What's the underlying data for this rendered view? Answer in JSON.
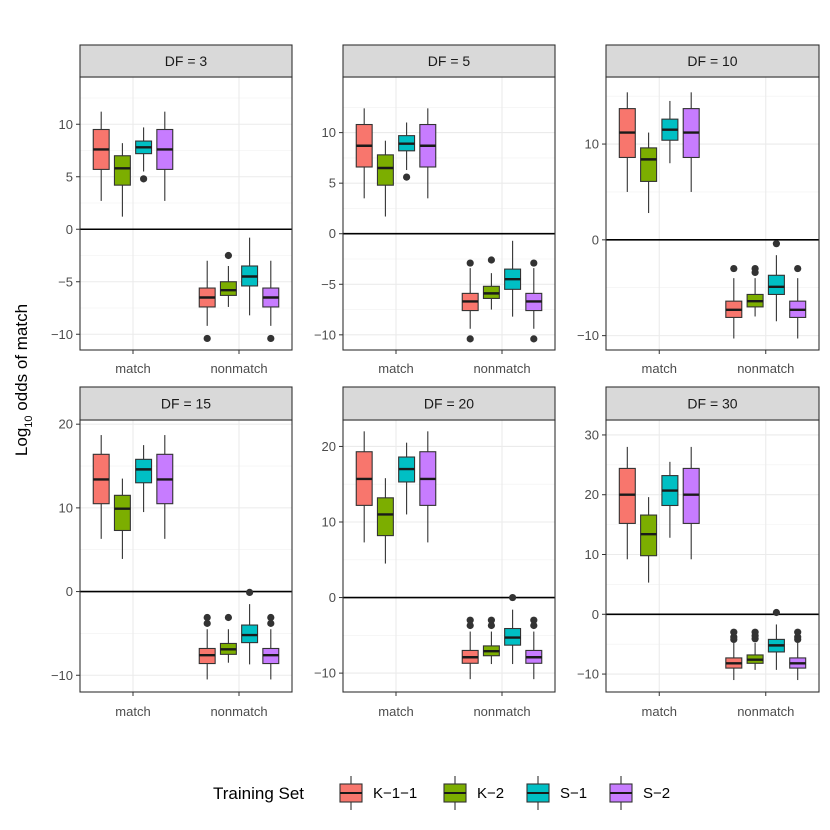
{
  "chart_data": {
    "type": "boxplot",
    "ylabel_prefix": "Log",
    "ylabel_subscript": "10",
    "ylabel_suffix": " odds of match",
    "categories": [
      "match",
      "nonmatch"
    ],
    "legend": {
      "title": "Training Set",
      "position": "bottom",
      "entries": [
        "K−1−1",
        "K−2",
        "S−1",
        "S−2"
      ]
    },
    "colors": [
      "#F8766D",
      "#7CAE00",
      "#00BFC4",
      "#C77CFF"
    ],
    "panels": [
      {
        "label": "DF = 3",
        "ylim": [
          -11.5,
          14.5
        ],
        "yticks": [
          -10,
          -5,
          0,
          5,
          10
        ],
        "tick_labels": [
          "−10",
          "−5",
          "0",
          "5",
          "10"
        ],
        "boxes": [
          [
            {
              "lo": 2.7,
              "q1": 5.7,
              "med": 7.6,
              "q3": 9.5,
              "hi": 11.2,
              "out": []
            },
            {
              "lo": 1.2,
              "q1": 4.2,
              "med": 5.8,
              "q3": 7.0,
              "hi": 8.2,
              "out": []
            },
            {
              "lo": 5.5,
              "q1": 7.2,
              "med": 7.8,
              "q3": 8.4,
              "hi": 9.7,
              "out": [
                4.8
              ]
            },
            {
              "lo": 2.7,
              "q1": 5.7,
              "med": 7.6,
              "q3": 9.5,
              "hi": 11.2,
              "out": []
            }
          ],
          [
            {
              "lo": -9.2,
              "q1": -7.4,
              "med": -6.5,
              "q3": -5.6,
              "hi": -3.0,
              "out": [
                -10.4
              ]
            },
            {
              "lo": -7.4,
              "q1": -6.3,
              "med": -5.8,
              "q3": -5.0,
              "hi": -3.5,
              "out": [
                -2.5
              ]
            },
            {
              "lo": -8.2,
              "q1": -5.4,
              "med": -4.5,
              "q3": -3.5,
              "hi": -0.8,
              "out": []
            },
            {
              "lo": -9.2,
              "q1": -7.4,
              "med": -6.5,
              "q3": -5.6,
              "hi": -3.0,
              "out": [
                -10.4
              ]
            }
          ]
        ]
      },
      {
        "label": "DF = 5",
        "ylim": [
          -11.5,
          15.5
        ],
        "yticks": [
          -10,
          -5,
          0,
          5,
          10
        ],
        "tick_labels": [
          "−10",
          "−5",
          "0",
          "5",
          "10"
        ],
        "boxes": [
          [
            {
              "lo": 3.5,
              "q1": 6.6,
              "med": 8.7,
              "q3": 10.8,
              "hi": 12.4,
              "out": []
            },
            {
              "lo": 1.7,
              "q1": 4.8,
              "med": 6.5,
              "q3": 7.8,
              "hi": 9.2,
              "out": []
            },
            {
              "lo": 6.3,
              "q1": 8.2,
              "med": 8.9,
              "q3": 9.7,
              "hi": 11.0,
              "out": [
                5.6
              ]
            },
            {
              "lo": 3.5,
              "q1": 6.6,
              "med": 8.7,
              "q3": 10.8,
              "hi": 12.4,
              "out": []
            }
          ],
          [
            {
              "lo": -9.4,
              "q1": -7.6,
              "med": -6.7,
              "q3": -5.9,
              "hi": -3.4,
              "out": [
                -10.4,
                -2.9
              ]
            },
            {
              "lo": -7.5,
              "q1": -6.4,
              "med": -5.9,
              "q3": -5.2,
              "hi": -3.9,
              "out": [
                -2.6
              ]
            },
            {
              "lo": -8.2,
              "q1": -5.5,
              "med": -4.5,
              "q3": -3.5,
              "hi": -0.7,
              "out": []
            },
            {
              "lo": -9.4,
              "q1": -7.6,
              "med": -6.7,
              "q3": -5.9,
              "hi": -3.4,
              "out": [
                -10.4,
                -2.9
              ]
            }
          ]
        ]
      },
      {
        "label": "DF = 10",
        "ylim": [
          -11.5,
          17.0
        ],
        "yticks": [
          -10,
          0,
          10
        ],
        "tick_labels": [
          "−10",
          "0",
          "10"
        ],
        "boxes": [
          [
            {
              "lo": 5.0,
              "q1": 8.6,
              "med": 11.2,
              "q3": 13.7,
              "hi": 15.4,
              "out": []
            },
            {
              "lo": 2.8,
              "q1": 6.1,
              "med": 8.4,
              "q3": 9.6,
              "hi": 11.2,
              "out": []
            },
            {
              "lo": 8.0,
              "q1": 10.4,
              "med": 11.5,
              "q3": 12.6,
              "hi": 14.5,
              "out": []
            },
            {
              "lo": 5.0,
              "q1": 8.6,
              "med": 11.2,
              "q3": 13.7,
              "hi": 15.4,
              "out": []
            }
          ],
          [
            {
              "lo": -10.3,
              "q1": -8.1,
              "med": -7.3,
              "q3": -6.4,
              "hi": -4.0,
              "out": [
                -3.0
              ]
            },
            {
              "lo": -8.0,
              "q1": -7.0,
              "med": -6.4,
              "q3": -5.7,
              "hi": -4.0,
              "out": [
                -3.0,
                -3.4
              ]
            },
            {
              "lo": -8.5,
              "q1": -5.7,
              "med": -4.9,
              "q3": -3.7,
              "hi": -1.6,
              "out": [
                -0.4
              ]
            },
            {
              "lo": -10.3,
              "q1": -8.1,
              "med": -7.3,
              "q3": -6.4,
              "hi": -4.0,
              "out": [
                -3.0
              ]
            }
          ]
        ]
      },
      {
        "label": "DF = 15",
        "ylim": [
          -12.0,
          20.5
        ],
        "yticks": [
          -10,
          0,
          10,
          20
        ],
        "tick_labels": [
          "−10",
          "0",
          "10",
          "20"
        ],
        "boxes": [
          [
            {
              "lo": 6.3,
              "q1": 10.5,
              "med": 13.4,
              "q3": 16.4,
              "hi": 18.7,
              "out": []
            },
            {
              "lo": 3.9,
              "q1": 7.3,
              "med": 9.9,
              "q3": 11.5,
              "hi": 13.5,
              "out": []
            },
            {
              "lo": 9.5,
              "q1": 13.0,
              "med": 14.6,
              "q3": 15.8,
              "hi": 17.5,
              "out": []
            },
            {
              "lo": 6.3,
              "q1": 10.5,
              "med": 13.4,
              "q3": 16.4,
              "hi": 18.7,
              "out": []
            }
          ],
          [
            {
              "lo": -10.5,
              "q1": -8.6,
              "med": -7.6,
              "q3": -6.8,
              "hi": -4.5,
              "out": [
                -3.1,
                -3.8
              ]
            },
            {
              "lo": -8.5,
              "q1": -7.5,
              "med": -6.9,
              "q3": -6.2,
              "hi": -4.5,
              "out": [
                -3.1
              ]
            },
            {
              "lo": -8.7,
              "q1": -6.1,
              "med": -5.2,
              "q3": -4.0,
              "hi": -1.5,
              "out": [
                -0.1
              ]
            },
            {
              "lo": -10.5,
              "q1": -8.6,
              "med": -7.6,
              "q3": -6.8,
              "hi": -4.5,
              "out": [
                -3.1,
                -3.8
              ]
            }
          ]
        ]
      },
      {
        "label": "DF = 20",
        "ylim": [
          -12.5,
          23.5
        ],
        "yticks": [
          -10,
          0,
          10,
          20
        ],
        "tick_labels": [
          "−10",
          "0",
          "10",
          "20"
        ],
        "boxes": [
          [
            {
              "lo": 7.3,
              "q1": 12.2,
              "med": 15.7,
              "q3": 19.3,
              "hi": 22.0,
              "out": []
            },
            {
              "lo": 4.5,
              "q1": 8.2,
              "med": 11.0,
              "q3": 13.2,
              "hi": 15.8,
              "out": []
            },
            {
              "lo": 11.0,
              "q1": 15.3,
              "med": 17.0,
              "q3": 18.6,
              "hi": 20.5,
              "out": []
            },
            {
              "lo": 7.3,
              "q1": 12.2,
              "med": 15.7,
              "q3": 19.3,
              "hi": 22.0,
              "out": []
            }
          ],
          [
            {
              "lo": -10.8,
              "q1": -8.7,
              "med": -7.9,
              "q3": -7.0,
              "hi": -4.5,
              "out": [
                -3.0,
                -3.7
              ]
            },
            {
              "lo": -8.8,
              "q1": -7.7,
              "med": -7.1,
              "q3": -6.4,
              "hi": -4.5,
              "out": [
                -3.0,
                -3.7
              ]
            },
            {
              "lo": -8.8,
              "q1": -6.3,
              "med": -5.3,
              "q3": -4.1,
              "hi": -1.6,
              "out": [
                0.0
              ]
            },
            {
              "lo": -10.8,
              "q1": -8.7,
              "med": -7.9,
              "q3": -7.0,
              "hi": -4.5,
              "out": [
                -3.0,
                -3.7
              ]
            }
          ]
        ]
      },
      {
        "label": "DF = 30",
        "ylim": [
          -13.0,
          32.5
        ],
        "yticks": [
          -10,
          0,
          10,
          20,
          30
        ],
        "tick_labels": [
          "−10",
          "0",
          "10",
          "20",
          "30"
        ],
        "boxes": [
          [
            {
              "lo": 9.2,
              "q1": 15.2,
              "med": 20.0,
              "q3": 24.4,
              "hi": 28.0,
              "out": []
            },
            {
              "lo": 5.3,
              "q1": 9.8,
              "med": 13.4,
              "q3": 16.6,
              "hi": 19.6,
              "out": []
            },
            {
              "lo": 12.8,
              "q1": 18.2,
              "med": 20.7,
              "q3": 23.2,
              "hi": 25.5,
              "out": []
            },
            {
              "lo": 9.2,
              "q1": 15.2,
              "med": 20.0,
              "q3": 24.4,
              "hi": 28.0,
              "out": []
            }
          ],
          [
            {
              "lo": -11.0,
              "q1": -9.0,
              "med": -8.2,
              "q3": -7.3,
              "hi": -4.8,
              "out": [
                -3.0,
                -3.8,
                -4.2
              ]
            },
            {
              "lo": -9.3,
              "q1": -8.2,
              "med": -7.6,
              "q3": -6.8,
              "hi": -4.8,
              "out": [
                -3.0,
                -3.6,
                -4.1
              ]
            },
            {
              "lo": -9.3,
              "q1": -6.3,
              "med": -5.2,
              "q3": -4.2,
              "hi": -1.7,
              "out": [
                0.3
              ]
            },
            {
              "lo": -11.0,
              "q1": -9.0,
              "med": -8.2,
              "q3": -7.3,
              "hi": -4.8,
              "out": [
                -3.0,
                -3.8,
                -4.2
              ]
            }
          ]
        ]
      }
    ]
  }
}
